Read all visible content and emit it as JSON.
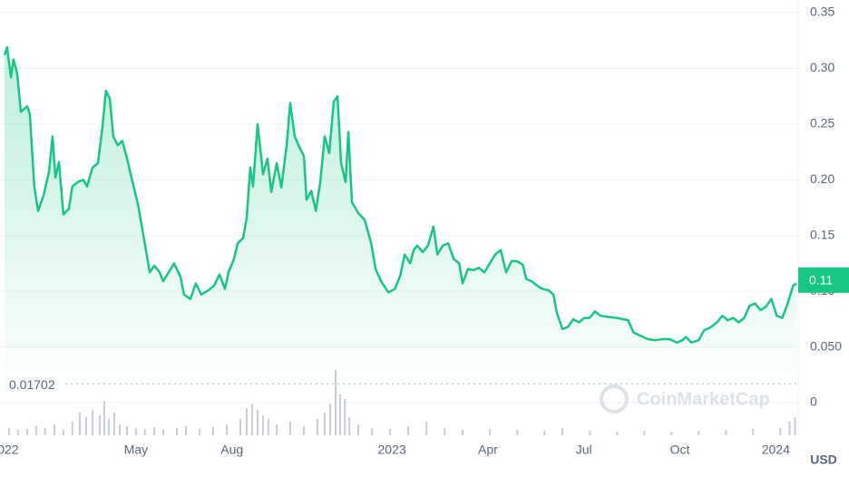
{
  "chart_data": {
    "type": "line",
    "currency": "USD",
    "watermark": "CoinMarketCap",
    "xlim": [
      -0.11,
      24.7
    ],
    "ylim": [
      0,
      0.35
    ],
    "y2lim": [
      0,
      72
    ],
    "xticks": [
      {
        "value": 0,
        "label": "022"
      },
      {
        "value": 4,
        "label": "May"
      },
      {
        "value": 7,
        "label": "Aug"
      },
      {
        "value": 12,
        "label": "2023"
      },
      {
        "value": 15,
        "label": "Apr"
      },
      {
        "value": 18,
        "label": "Jul"
      },
      {
        "value": 21,
        "label": "Oct"
      },
      {
        "value": 24,
        "label": "2024"
      }
    ],
    "yticks": [
      0.35,
      {
        "value": 0.3,
        "label": "0.30"
      },
      0.25,
      {
        "value": 0.2,
        "label": "0.20"
      },
      0.15,
      {
        "value": 0.1,
        "label": "0.10"
      },
      {
        "value": 0.05,
        "label": "0.050"
      },
      0
    ],
    "grid": true,
    "min_line": 0.01702,
    "current_price": 0.11,
    "series": [
      {
        "color": "#16c784",
        "x": [
          -0.11,
          -0.03,
          0.09,
          0.17,
          0.28,
          0.4,
          0.6,
          0.68,
          0.82,
          0.94,
          1.11,
          1.28,
          1.39,
          1.48,
          1.59,
          1.73,
          1.9,
          2.01,
          2.18,
          2.35,
          2.47,
          2.64,
          2.81,
          2.95,
          3.06,
          3.18,
          3.29,
          3.43,
          3.57,
          3.72,
          3.89,
          4.06,
          4.23,
          4.43,
          4.57,
          4.74,
          4.85,
          5.02,
          5.19,
          5.39,
          5.5,
          5.7,
          5.87,
          6.04,
          6.27,
          6.44,
          6.61,
          6.78,
          6.89,
          7.06,
          7.18,
          7.35,
          7.46,
          7.57,
          7.66,
          7.8,
          7.97,
          8.11,
          8.23,
          8.4,
          8.54,
          8.71,
          8.82,
          8.96,
          9.11,
          9.25,
          9.33,
          9.48,
          9.62,
          9.76,
          9.9,
          10.04,
          10.18,
          10.3,
          10.41,
          10.55,
          10.64,
          10.75,
          10.95,
          11.15,
          11.35,
          11.49,
          11.66,
          11.89,
          12.09,
          12.26,
          12.4,
          12.57,
          12.68,
          12.79,
          12.96,
          13.13,
          13.3,
          13.42,
          13.59,
          13.76,
          13.93,
          14.1,
          14.21,
          14.38,
          14.55,
          14.72,
          14.89,
          15.06,
          15.23,
          15.4,
          15.57,
          15.74,
          15.91,
          16.09,
          16.2,
          16.37,
          16.54,
          16.71,
          16.88,
          17.05,
          17.16,
          17.33,
          17.5,
          17.67,
          17.84,
          18.01,
          18.18,
          18.35,
          18.52,
          18.75,
          19.04,
          19.38,
          19.55,
          19.77,
          20.0,
          20.23,
          20.45,
          20.68,
          20.91,
          21.08,
          21.19,
          21.36,
          21.59,
          21.76,
          21.93,
          22.16,
          22.33,
          22.5,
          22.67,
          22.84,
          23.01,
          23.18,
          23.35,
          23.52,
          23.69,
          23.86,
          24.03,
          24.2,
          24.37,
          24.54,
          24.65
        ],
        "values": [
          0.312,
          0.319,
          0.292,
          0.308,
          0.296,
          0.261,
          0.266,
          0.259,
          0.194,
          0.172,
          0.186,
          0.207,
          0.239,
          0.202,
          0.216,
          0.169,
          0.174,
          0.194,
          0.198,
          0.2,
          0.194,
          0.211,
          0.215,
          0.247,
          0.28,
          0.273,
          0.239,
          0.231,
          0.235,
          0.219,
          0.198,
          0.178,
          0.15,
          0.117,
          0.123,
          0.117,
          0.109,
          0.117,
          0.125,
          0.113,
          0.097,
          0.093,
          0.107,
          0.097,
          0.101,
          0.105,
          0.115,
          0.102,
          0.117,
          0.129,
          0.143,
          0.148,
          0.166,
          0.211,
          0.194,
          0.25,
          0.205,
          0.219,
          0.189,
          0.215,
          0.193,
          0.231,
          0.269,
          0.239,
          0.229,
          0.221,
          0.182,
          0.19,
          0.172,
          0.198,
          0.239,
          0.224,
          0.27,
          0.275,
          0.215,
          0.198,
          0.243,
          0.18,
          0.17,
          0.164,
          0.143,
          0.12,
          0.109,
          0.099,
          0.102,
          0.114,
          0.133,
          0.125,
          0.137,
          0.141,
          0.135,
          0.141,
          0.158,
          0.133,
          0.141,
          0.143,
          0.129,
          0.125,
          0.107,
          0.12,
          0.119,
          0.121,
          0.117,
          0.125,
          0.133,
          0.137,
          0.117,
          0.127,
          0.127,
          0.124,
          0.111,
          0.109,
          0.105,
          0.102,
          0.101,
          0.097,
          0.08,
          0.066,
          0.068,
          0.075,
          0.072,
          0.076,
          0.076,
          0.082,
          0.078,
          0.077,
          0.076,
          0.074,
          0.063,
          0.06,
          0.057,
          0.056,
          0.057,
          0.057,
          0.054,
          0.056,
          0.059,
          0.054,
          0.056,
          0.065,
          0.067,
          0.072,
          0.078,
          0.074,
          0.076,
          0.072,
          0.076,
          0.087,
          0.089,
          0.083,
          0.086,
          0.093,
          0.078,
          0.076,
          0.089,
          0.105,
          0.107
        ]
      },
      {
        "type": "bar",
        "axis": "y2",
        "color": "#c9cdd8",
        "x": [
          0.03,
          0.31,
          0.6,
          0.88,
          1.16,
          1.45,
          1.73,
          2.01,
          2.24,
          2.44,
          2.64,
          2.87,
          3.01,
          3.15,
          3.32,
          3.49,
          3.72,
          4.0,
          4.28,
          4.57,
          4.85,
          5.28,
          5.56,
          5.99,
          6.41,
          6.84,
          7.26,
          7.46,
          7.63,
          7.8,
          7.97,
          8.14,
          8.4,
          8.82,
          9.25,
          9.67,
          9.9,
          10.07,
          10.24,
          10.38,
          10.53,
          10.67,
          10.95,
          11.38,
          11.94,
          12.51,
          13.08,
          13.65,
          14.21,
          15.06,
          15.92,
          16.77,
          17.33,
          18.19,
          19.04,
          19.89,
          20.74,
          21.59,
          22.44,
          23.29,
          24.14,
          24.43,
          24.6
        ],
        "values": [
          8,
          6,
          7,
          10,
          8,
          12,
          6,
          15,
          25,
          20,
          28,
          22,
          38,
          18,
          25,
          12,
          10,
          8,
          7,
          9,
          6,
          8,
          10,
          7,
          9,
          12,
          18,
          30,
          35,
          28,
          22,
          18,
          12,
          15,
          10,
          18,
          25,
          35,
          72,
          45,
          40,
          20,
          12,
          8,
          7,
          10,
          15,
          8,
          6,
          7,
          6,
          5,
          8,
          5,
          4,
          5,
          4,
          5,
          6,
          7,
          8,
          15,
          20
        ]
      }
    ]
  }
}
